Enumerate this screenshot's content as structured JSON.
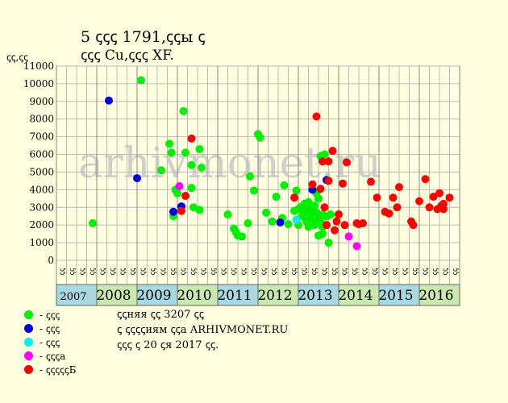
{
  "header": {
    "title_line1": "5 ꞔꞔꞔ 1791,ꞔꞔы ꞔ",
    "title_line2": "ꞔꞔꞔ Cu,ꞔꞔꞔ XF.",
    "ylabel": "ꞔꞔ,ꞔꞔ"
  },
  "watermark": "arhivmonet.ru",
  "legend": [
    {
      "color": "#00ee00",
      "label": "- ꞔꞔꞔ"
    },
    {
      "color": "#0000dd",
      "label": "- ꞔꞔꞔ"
    },
    {
      "color": "#00eeee",
      "label": "- ꞔꞔꞔ"
    },
    {
      "color": "#ff00ff",
      "label": "- ꞔꞔꞔа"
    },
    {
      "color": "#ff0000",
      "label": "- ꞔꞔꞔꞔꞔБ"
    }
  ],
  "notes": [
    "ꞔꞔняя ꞔꞔ 3207 ꞔꞔ",
    "ꞔ ꞔꞔꞔꞔиям ꞔꞔа ARHIVMONET.RU",
    "ꞔꞔꞔ ꞔ 20 ꞔя 2017 ꞔꞔ."
  ],
  "chart_data": {
    "type": "scatter",
    "ylim": [
      0,
      11000
    ],
    "yticks": [
      0,
      1000,
      2000,
      3000,
      4000,
      5000,
      6000,
      7000,
      8000,
      9000,
      10000,
      11000
    ],
    "quarter_labels": [
      "ꞔꞔ",
      "ꞔꞔ",
      "ꞔꞔ",
      "ꞔꞔ"
    ],
    "years": [
      "2007",
      "2008",
      "2009",
      "2010",
      "2011",
      "2012",
      "2013",
      "2014",
      "2015",
      "2016"
    ],
    "grid": true,
    "series": {
      "green": [
        [
          2007.9,
          2100
        ],
        [
          2009.1,
          10200
        ],
        [
          2009.6,
          5100
        ],
        [
          2009.8,
          6600
        ],
        [
          2009.85,
          6100
        ],
        [
          2009.9,
          2500
        ],
        [
          2009.95,
          4000
        ],
        [
          2010.0,
          3800
        ],
        [
          2010.15,
          8450
        ],
        [
          2010.2,
          6100
        ],
        [
          2010.35,
          4100
        ],
        [
          2010.35,
          5400
        ],
        [
          2010.4,
          3000
        ],
        [
          2010.55,
          2850
        ],
        [
          2010.55,
          6300
        ],
        [
          2010.6,
          5250
        ],
        [
          2011.25,
          2600
        ],
        [
          2011.4,
          1800
        ],
        [
          2011.45,
          1600
        ],
        [
          2011.5,
          1400
        ],
        [
          2011.6,
          1350
        ],
        [
          2011.75,
          2100
        ],
        [
          2011.8,
          4750
        ],
        [
          2011.9,
          3950
        ],
        [
          2012.0,
          7150
        ],
        [
          2012.05,
          6950
        ],
        [
          2012.2,
          2700
        ],
        [
          2012.35,
          2200
        ],
        [
          2012.45,
          3600
        ],
        [
          2012.6,
          2400
        ],
        [
          2012.65,
          4250
        ],
        [
          2012.75,
          2050
        ],
        [
          2012.9,
          2800
        ],
        [
          2012.95,
          3950
        ],
        [
          2013.0,
          2900
        ],
        [
          2013.0,
          2000
        ],
        [
          2013.05,
          3000
        ],
        [
          2013.1,
          3000
        ],
        [
          2013.1,
          2500
        ],
        [
          2013.15,
          3200
        ],
        [
          2013.15,
          2700
        ],
        [
          2013.2,
          2800
        ],
        [
          2013.2,
          2200
        ],
        [
          2013.25,
          3300
        ],
        [
          2013.25,
          1900
        ],
        [
          2013.3,
          2500
        ],
        [
          2013.3,
          2900
        ],
        [
          2013.35,
          3000
        ],
        [
          2013.35,
          2300
        ],
        [
          2013.4,
          3100
        ],
        [
          2013.4,
          2000
        ],
        [
          2013.45,
          2700
        ],
        [
          2013.45,
          3800
        ],
        [
          2013.5,
          2300
        ],
        [
          2013.5,
          3500
        ],
        [
          2013.55,
          2200
        ],
        [
          2013.55,
          5900
        ],
        [
          2013.6,
          1900
        ],
        [
          2013.6,
          2600
        ],
        [
          2013.65,
          6000
        ],
        [
          2013.7,
          2500
        ],
        [
          2013.75,
          1000
        ],
        [
          2013.8,
          2600
        ],
        [
          2013.5,
          1400
        ],
        [
          2013.6,
          1500
        ]
      ],
      "blue": [
        [
          2008.3,
          9050
        ],
        [
          2009.0,
          4650
        ],
        [
          2009.9,
          2750
        ],
        [
          2010.1,
          3050
        ],
        [
          2012.55,
          2150
        ],
        [
          2013.35,
          4000
        ],
        [
          2013.7,
          4550
        ]
      ],
      "cyan": [
        [
          2012.95,
          2300
        ]
      ],
      "magenta": [
        [
          2010.05,
          4200
        ],
        [
          2014.25,
          1350
        ],
        [
          2014.45,
          800
        ]
      ],
      "red": [
        [
          2010.1,
          2800
        ],
        [
          2010.2,
          3650
        ],
        [
          2010.35,
          6900
        ],
        [
          2012.9,
          3550
        ],
        [
          2013.35,
          4300
        ],
        [
          2013.45,
          8150
        ],
        [
          2013.55,
          4050
        ],
        [
          2013.6,
          5600
        ],
        [
          2013.65,
          3000
        ],
        [
          2013.7,
          2000
        ],
        [
          2013.75,
          5600
        ],
        [
          2013.75,
          4500
        ],
        [
          2013.85,
          6200
        ],
        [
          2013.9,
          1700
        ],
        [
          2013.95,
          2200
        ],
        [
          2014.0,
          2600
        ],
        [
          2014.1,
          4350
        ],
        [
          2014.15,
          2000
        ],
        [
          2014.2,
          5550
        ],
        [
          2014.45,
          2100
        ],
        [
          2014.5,
          2050
        ],
        [
          2014.6,
          2100
        ],
        [
          2014.8,
          4450
        ],
        [
          2014.95,
          3550
        ],
        [
          2015.15,
          2750
        ],
        [
          2015.25,
          2650
        ],
        [
          2015.35,
          3550
        ],
        [
          2015.45,
          3000
        ],
        [
          2015.5,
          4150
        ],
        [
          2015.8,
          2200
        ],
        [
          2015.85,
          2000
        ],
        [
          2016.0,
          3350
        ],
        [
          2016.15,
          4600
        ],
        [
          2016.25,
          3000
        ],
        [
          2016.35,
          3600
        ],
        [
          2016.45,
          2900
        ],
        [
          2016.5,
          3800
        ],
        [
          2016.55,
          3100
        ],
        [
          2016.6,
          3200
        ],
        [
          2016.75,
          3550
        ],
        [
          2016.6,
          2900
        ]
      ]
    },
    "colors": {
      "green": "#00ee00",
      "blue": "#0000dd",
      "cyan": "#00eeee",
      "magenta": "#ff00ff",
      "red": "#ff0000"
    }
  }
}
